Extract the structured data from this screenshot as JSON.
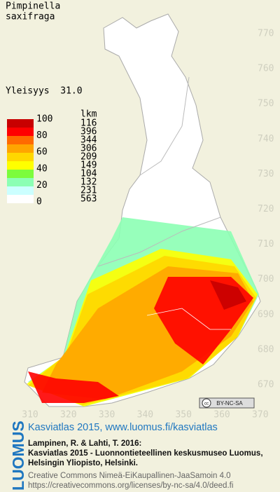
{
  "header": {
    "title": [
      "Pimpinella",
      "saxifraga"
    ],
    "frequency": "Yleisyys  31.0"
  },
  "legend": {
    "count_header": "lkm",
    "scale_labels": [
      100,
      80,
      60,
      40,
      20,
      0
    ],
    "classes": [
      {
        "color": "#c80000",
        "count": 116
      },
      {
        "color": "#ff0000",
        "count": 396
      },
      {
        "color": "#ff6a00",
        "count": 344
      },
      {
        "color": "#ffa500",
        "count": 306
      },
      {
        "color": "#ffd700",
        "count": 209
      },
      {
        "color": "#ffff00",
        "count": 149
      },
      {
        "color": "#7cfc3c",
        "count": 104
      },
      {
        "color": "#8cffb4",
        "count": 132
      },
      {
        "color": "#ccffff",
        "count": 231
      },
      {
        "color": "#ffffff",
        "count": 563
      }
    ]
  },
  "map": {
    "north_ticks": [
      770,
      760,
      750,
      740,
      730,
      720,
      710,
      700,
      690,
      680,
      670
    ],
    "east_ticks": [
      310,
      320,
      330,
      340,
      350,
      360,
      370
    ],
    "license_badge": "BY-NC-SA"
  },
  "footer": {
    "brand": "LUOMUS",
    "site": "Kasviatlas 2015, www.luomus.fi/kasviatlas",
    "citation": [
      "Lampinen, R. & Lahti, T. 2016:",
      "Kasviatlas 2015 - Luonnontieteellinen keskusmuseo Luomus,",
      "Helsingin Yliopisto, Helsinki."
    ],
    "license": [
      "Creative Commons Nimeä-EiKaupallinen-JaaSamoin 4.0",
      "https://creativecommons.org/licenses/by-nc-sa/4.0/deed.fi"
    ]
  }
}
